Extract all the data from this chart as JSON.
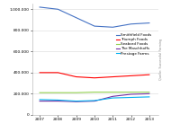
{
  "years": [
    2007,
    2008,
    2009,
    2010,
    2011,
    2012,
    2013
  ],
  "series": [
    {
      "name": "Smithfield Foods",
      "color": "#4472C4",
      "values": [
        1020000,
        1000000,
        920000,
        840000,
        830000,
        860000,
        870000
      ]
    },
    {
      "name": "Triumph Foods",
      "color": "#FF0000",
      "values": [
        400000,
        400000,
        360000,
        350000,
        360000,
        370000,
        380000
      ]
    },
    {
      "name": "Seabord Foods",
      "color": "#92D050",
      "values": [
        210000,
        210000,
        210000,
        215000,
        215000,
        215000,
        215000
      ]
    },
    {
      "name": "The Maschhoffs",
      "color": "#7030A0",
      "values": [
        130000,
        130000,
        125000,
        130000,
        175000,
        195000,
        200000
      ]
    },
    {
      "name": "Prestage Farms",
      "color": "#00B0F0",
      "values": [
        145000,
        140000,
        130000,
        135000,
        160000,
        165000,
        170000
      ]
    }
  ],
  "ylim": [
    0,
    1050000
  ],
  "yticks": [
    0,
    200000,
    400000,
    600000,
    800000,
    1000000
  ],
  "ytick_labels": [
    "0",
    "200.000",
    "400.000",
    "600.000",
    "800.000",
    "1.000.000"
  ],
  "ylabel_right": "Quelle: Successful Farming",
  "background_color": "#ffffff",
  "grid_color": "#d8d8d8"
}
